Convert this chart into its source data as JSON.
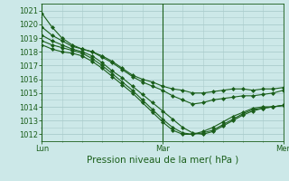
{
  "title": "",
  "xlabel": "Pression niveau de la mer( hPa )",
  "ylabel": "",
  "bg_color": "#cce8e8",
  "plot_bg_color": "#cce8e8",
  "grid_color": "#aacccc",
  "line_color": "#1a5e1a",
  "ylim": [
    1011.5,
    1021.5
  ],
  "xlim": [
    0,
    48
  ],
  "yticks": [
    1012,
    1013,
    1014,
    1015,
    1016,
    1017,
    1018,
    1019,
    1020,
    1021
  ],
  "xtick_positions": [
    0,
    24,
    48
  ],
  "xtick_labels": [
    "Lun",
    "Mar",
    "Mer"
  ],
  "series": [
    {
      "y": [
        1020.8,
        1019.8,
        1019.0,
        1018.5,
        1018.2,
        1018.0,
        1017.7,
        1017.3,
        1016.8,
        1016.3,
        1016.0,
        1015.8,
        1015.5,
        1015.3,
        1015.2,
        1015.0,
        1015.0,
        1015.1,
        1015.2,
        1015.3,
        1015.3,
        1015.2,
        1015.3,
        1015.3,
        1015.4
      ]
    },
    {
      "y": [
        1019.8,
        1019.2,
        1018.8,
        1018.4,
        1018.2,
        1018.0,
        1017.6,
        1017.2,
        1016.7,
        1016.2,
        1015.8,
        1015.5,
        1015.2,
        1014.8,
        1014.5,
        1014.2,
        1014.3,
        1014.5,
        1014.6,
        1014.7,
        1014.8,
        1014.8,
        1014.9,
        1015.0,
        1015.2
      ]
    },
    {
      "y": [
        1019.2,
        1018.8,
        1018.5,
        1018.2,
        1018.0,
        1017.7,
        1017.2,
        1016.6,
        1016.1,
        1015.5,
        1014.9,
        1014.3,
        1013.7,
        1013.1,
        1012.5,
        1012.1,
        1012.0,
        1012.2,
        1012.6,
        1013.0,
        1013.4,
        1013.7,
        1013.9,
        1014.0,
        1014.1
      ]
    },
    {
      "y": [
        1018.8,
        1018.5,
        1018.3,
        1018.1,
        1017.9,
        1017.5,
        1017.0,
        1016.4,
        1015.8,
        1015.2,
        1014.5,
        1013.8,
        1013.1,
        1012.5,
        1012.1,
        1012.0,
        1012.1,
        1012.3,
        1012.7,
        1013.1,
        1013.5,
        1013.8,
        1013.9,
        1014.0,
        1014.1
      ]
    },
    {
      "y": [
        1018.5,
        1018.2,
        1018.0,
        1017.9,
        1017.7,
        1017.3,
        1016.8,
        1016.2,
        1015.6,
        1015.0,
        1014.3,
        1013.6,
        1012.9,
        1012.3,
        1012.0,
        1012.0,
        1012.2,
        1012.5,
        1012.9,
        1013.3,
        1013.6,
        1013.9,
        1014.0,
        1014.0,
        1014.1
      ]
    }
  ],
  "marker": "D",
  "marker_size": 2,
  "line_width": 0.8,
  "tick_fontsize": 6,
  "label_fontsize": 7.5
}
